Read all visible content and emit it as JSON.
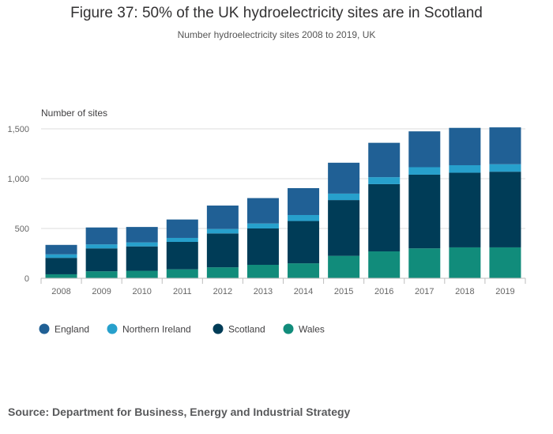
{
  "header": {
    "title": "Figure 37: 50% of the UK hydroelectricity sites are in Scotland",
    "subtitle": "Number hydroelectricity sites 2008 to 2019, UK"
  },
  "footer": {
    "source": "Source: Department for Business, Energy and Industrial Strategy"
  },
  "chart_data": {
    "type": "bar",
    "stacked": true,
    "title": "Figure 37: 50% of the UK hydroelectricity sites are in Scotland",
    "subtitle": "Number hydroelectricity sites 2008 to 2019, UK",
    "xlabel": "",
    "ylabel": "Number of sites",
    "ylim": [
      0,
      1500
    ],
    "yticks": [
      0,
      500,
      1000,
      1500
    ],
    "ytick_labels": [
      "0",
      "500",
      "1,000",
      "1,500"
    ],
    "categories": [
      "2008",
      "2009",
      "2010",
      "2011",
      "2012",
      "2013",
      "2014",
      "2015",
      "2016",
      "2017",
      "2018",
      "2019"
    ],
    "series": [
      {
        "name": "Wales",
        "color": "#118c7b",
        "values": [
          40,
          70,
          75,
          90,
          110,
          135,
          150,
          225,
          270,
          300,
          310,
          310
        ]
      },
      {
        "name": "Scotland",
        "color": "#003c57",
        "values": [
          165,
          230,
          245,
          275,
          340,
          365,
          425,
          560,
          675,
          740,
          750,
          760
        ]
      },
      {
        "name": "Northern Ireland",
        "color": "#27a0cc",
        "values": [
          35,
          40,
          40,
          40,
          45,
          50,
          60,
          65,
          70,
          75,
          75,
          75
        ]
      },
      {
        "name": "England",
        "color": "#206095",
        "values": [
          95,
          170,
          155,
          185,
          235,
          255,
          270,
          310,
          345,
          360,
          375,
          370
        ]
      }
    ],
    "legend": {
      "position": "bottom-left",
      "order": [
        "England",
        "Northern Ireland",
        "Scotland",
        "Wales"
      ]
    },
    "grid": true,
    "colors": {
      "gridline": "#dedede",
      "axis": "#bebebe",
      "tick_text": "#666666"
    }
  }
}
